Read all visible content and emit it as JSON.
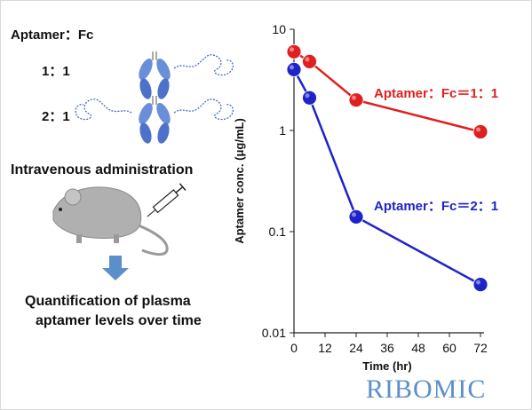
{
  "left_panel": {
    "ratio_heading": "Aptamer：Fc",
    "ratio_1_1": "1：1",
    "ratio_2_1": "2：1",
    "step_administration": "Intravenous administration",
    "step_quantification_line1": "Quantification of plasma",
    "step_quantification_line2": "aptamer levels over time"
  },
  "logo": {
    "text": "RIBOMIC",
    "color": "#5b8fc9"
  },
  "colors": {
    "series_1_1": "#e02020",
    "series_2_1": "#1e24c8",
    "arrow": "#5b8fc9",
    "mouse": "#b0b0b0"
  },
  "chart_data": {
    "type": "line",
    "yscale": "log",
    "xlabel": "Time (hr)",
    "ylabel": "Aptamer conc. (μg/mL)",
    "xlim": [
      0,
      72
    ],
    "ylim": [
      0.01,
      10
    ],
    "x_ticks": [
      "0",
      "12",
      "24",
      "36",
      "48",
      "60",
      "72"
    ],
    "y_ticks": [
      "0.01",
      "0.1",
      "1",
      "10"
    ],
    "series": [
      {
        "name": "Aptamer：Fc＝1：1",
        "x": [
          0,
          6,
          24,
          72
        ],
        "y": [
          6.0,
          4.8,
          2.0,
          0.97
        ]
      },
      {
        "name": "Aptamer：Fc＝2：1",
        "x": [
          0,
          6,
          24,
          72
        ],
        "y": [
          4.0,
          2.1,
          0.14,
          0.03
        ]
      }
    ]
  }
}
